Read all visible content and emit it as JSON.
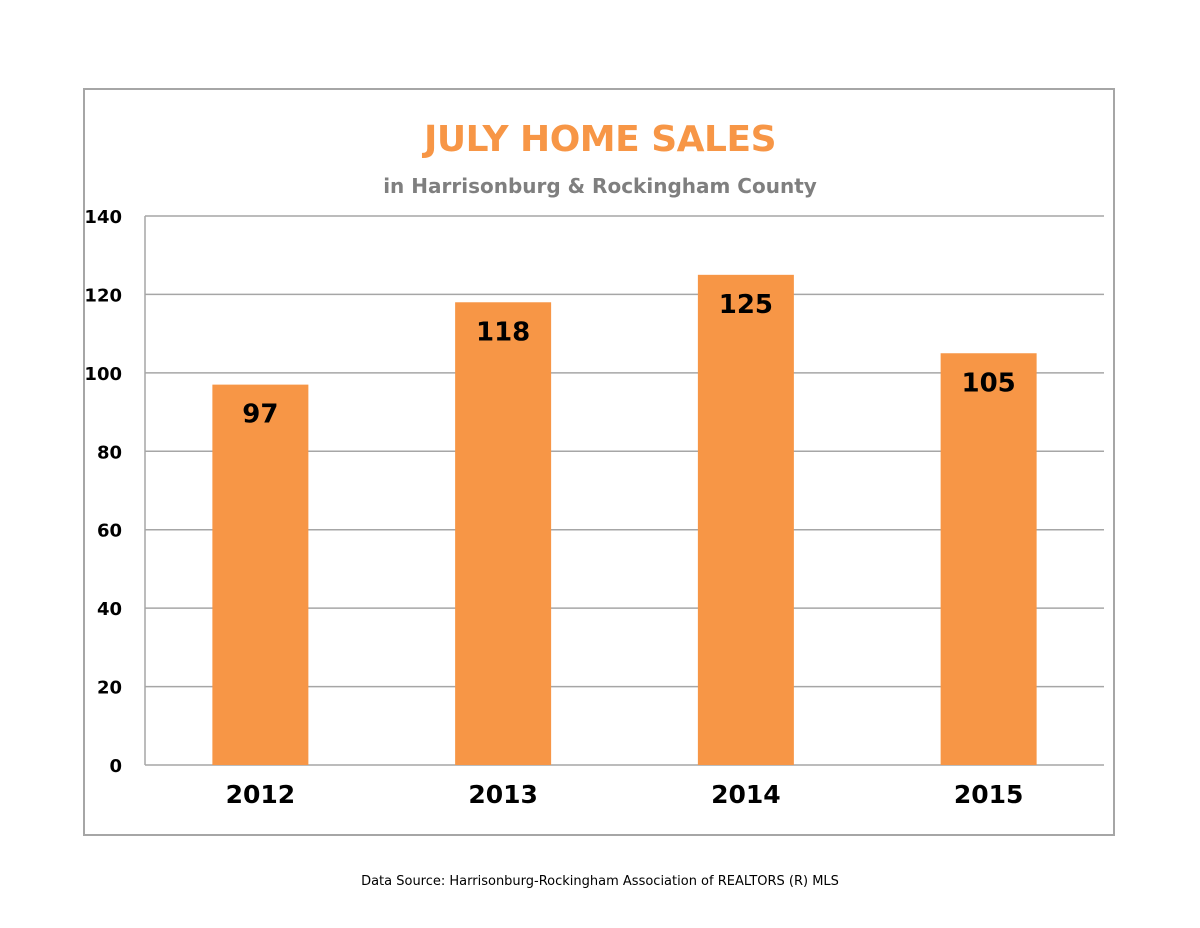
{
  "chart_data": {
    "type": "bar",
    "title": "JULY HOME SALES",
    "subtitle": "in Harrisonburg & Rockingham County",
    "categories": [
      "2012",
      "2013",
      "2014",
      "2015"
    ],
    "values": [
      97,
      118,
      125,
      105
    ],
    "data_labels": [
      "97",
      "118",
      "125",
      "105"
    ],
    "ylim": [
      0,
      140
    ],
    "yticks": [
      "0",
      "20",
      "40",
      "60",
      "80",
      "100",
      "120",
      "140"
    ],
    "grid": true,
    "legend": "none"
  },
  "colors": {
    "bar": "#f79646",
    "title": "#f79646",
    "subtitle": "#7f7f7f",
    "grid": "#a6a6a6"
  },
  "footer": {
    "source": "Data Source: Harrisonburg-Rockingham Association of REALTORS (R) MLS"
  }
}
